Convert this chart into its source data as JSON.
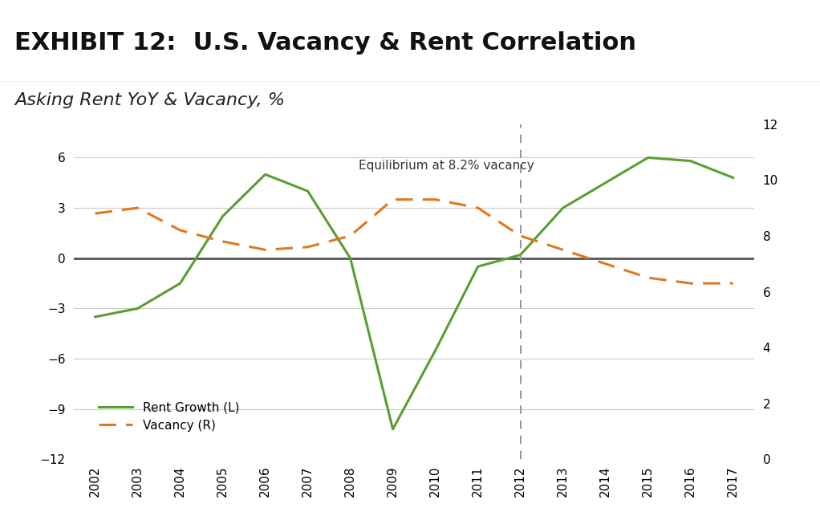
{
  "title": "EXHIBIT 12:  U.S. Vacancy & Rent Correlation",
  "subtitle": "Asking Rent YoY & Vacancy, %",
  "years": [
    2002,
    2003,
    2004,
    2005,
    2006,
    2007,
    2008,
    2009,
    2010,
    2011,
    2012,
    2013,
    2014,
    2015,
    2016,
    2017
  ],
  "rent_growth": [
    -3.5,
    -3.0,
    -1.5,
    2.5,
    5.0,
    4.0,
    0.0,
    -10.2,
    -5.5,
    -0.5,
    0.2,
    3.0,
    4.5,
    6.0,
    5.8,
    4.8
  ],
  "vacancy": [
    8.8,
    9.0,
    8.2,
    7.8,
    7.5,
    7.6,
    8.0,
    9.3,
    9.3,
    9.0,
    8.0,
    7.5,
    7.0,
    6.5,
    6.3,
    6.3
  ],
  "rent_color": "#5a9e32",
  "vacancy_color": "#e07820",
  "equilibrium_label": "Equilibrium at 8.2% vacancy",
  "vline_year": 2012,
  "left_ylim": [
    -12,
    8
  ],
  "left_yticks": [
    -12,
    -9,
    -6,
    -3,
    0,
    3,
    6
  ],
  "right_ylim": [
    0,
    12
  ],
  "right_yticks": [
    0,
    2,
    4,
    6,
    8,
    10,
    12
  ],
  "title_bg_color": "#dcdcdc",
  "title_fontsize": 22,
  "subtitle_fontsize": 16,
  "tick_fontsize": 11,
  "legend_rent_label": "Rent Growth (L)",
  "legend_vacancy_label": "Vacancy (R)",
  "grid_color": "#cccccc",
  "hline_color": "#555555",
  "vline_color": "#999999"
}
